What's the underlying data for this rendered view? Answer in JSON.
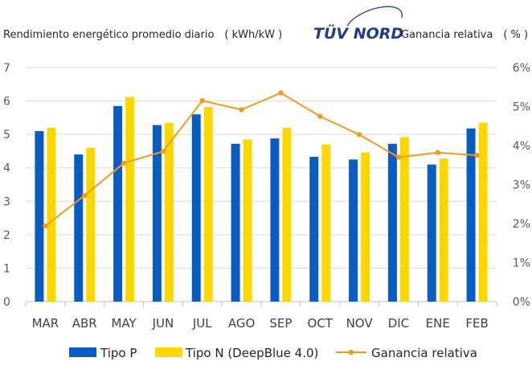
{
  "header": {
    "left_title": "Rendimiento energético promedio diario　( kWh/kW )",
    "logo_text": "TÜV NORD",
    "right_title": "Ganancia relativa　( % )"
  },
  "colors": {
    "tipo_p": "#0b5cc1",
    "tipo_n": "#ffd700",
    "ganancia": "#f39a1e",
    "grid": "#d9d9d9",
    "logo": "#1f3c88"
  },
  "chart_data": {
    "type": "bar",
    "categories": [
      "MAR",
      "ABR",
      "MAY",
      "JUN",
      "JUL",
      "AGO",
      "SEP",
      "OCT",
      "NOV",
      "DIC",
      "ENE",
      "FEB"
    ],
    "series": [
      {
        "name": "Tipo P",
        "type": "bar",
        "axis": "left",
        "values": [
          5.1,
          4.4,
          5.85,
          5.28,
          5.6,
          4.72,
          4.88,
          4.33,
          4.25,
          4.72,
          4.1,
          5.18
        ]
      },
      {
        "name": "Tipo N (DeepBlue 4.0)",
        "type": "bar",
        "axis": "left",
        "values": [
          5.2,
          4.6,
          6.12,
          5.35,
          5.82,
          4.85,
          5.2,
          4.7,
          4.46,
          4.92,
          4.28,
          5.35
        ]
      },
      {
        "name": "Ganancia relativa",
        "type": "line",
        "axis": "right",
        "values": [
          1.94,
          2.72,
          3.55,
          3.85,
          5.15,
          4.92,
          5.35,
          4.75,
          4.28,
          3.7,
          3.82,
          3.75
        ]
      }
    ],
    "y_left": {
      "min": 0,
      "max": 7,
      "ticks": [
        "0",
        "1",
        "2",
        "3",
        "4",
        "5",
        "6",
        "7"
      ]
    },
    "y_right": {
      "min": 0,
      "max": 6,
      "ticks": [
        "0%",
        "1%",
        "2%",
        "3%",
        "4%",
        "5%",
        "6%"
      ]
    },
    "grid": true,
    "legend": "bottom"
  }
}
